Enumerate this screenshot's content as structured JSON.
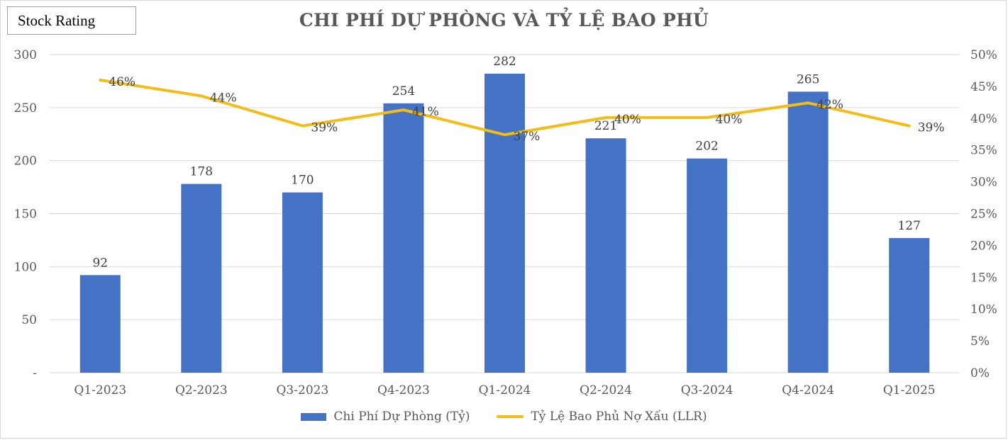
{
  "badge": {
    "label": "Stock Rating"
  },
  "chart_data": {
    "type": "bar",
    "title": "CHI PHÍ DỰ PHÒNG VÀ TỶ LỆ BAO PHỦ",
    "categories": [
      "Q1-2023",
      "Q2-2023",
      "Q3-2023",
      "Q4-2023",
      "Q1-2024",
      "Q2-2024",
      "Q3-2024",
      "Q4-2024",
      "Q1-2025"
    ],
    "series": [
      {
        "name": "Chi Phí Dự Phòng (Tỷ)",
        "type": "bar",
        "axis": "left",
        "color": "#4472c4",
        "values": [
          92,
          178,
          170,
          254,
          282,
          221,
          202,
          265,
          127
        ],
        "labels": [
          "92",
          "178",
          "170",
          "254",
          "282",
          "221",
          "202",
          "265",
          "127"
        ]
      },
      {
        "name": "Tỷ Lệ Bao Phủ Nợ Xấu (LLR)",
        "type": "line",
        "axis": "right",
        "color": "#f4bc17",
        "values": [
          46,
          43.5,
          38.8,
          41.3,
          37.4,
          40.1,
          40.1,
          42.4,
          38.8
        ],
        "labels": [
          "46%",
          "44%",
          "39%",
          "41%",
          "37%",
          "40%",
          "40%",
          "42%",
          "39%"
        ]
      }
    ],
    "y_left": {
      "range": [
        0,
        300
      ],
      "ticks": [
        0,
        50,
        100,
        150,
        200,
        250,
        300
      ],
      "tick_labels": [
        "-",
        "50",
        "100",
        "150",
        "200",
        "250",
        "300"
      ]
    },
    "y_right": {
      "range": [
        0,
        50
      ],
      "ticks": [
        0,
        5,
        10,
        15,
        20,
        25,
        30,
        35,
        40,
        45,
        50
      ],
      "tick_labels": [
        "0%",
        "5%",
        "10%",
        "15%",
        "20%",
        "25%",
        "30%",
        "35%",
        "40%",
        "45%",
        "50%"
      ]
    },
    "grid": true,
    "legend": "bottom"
  }
}
